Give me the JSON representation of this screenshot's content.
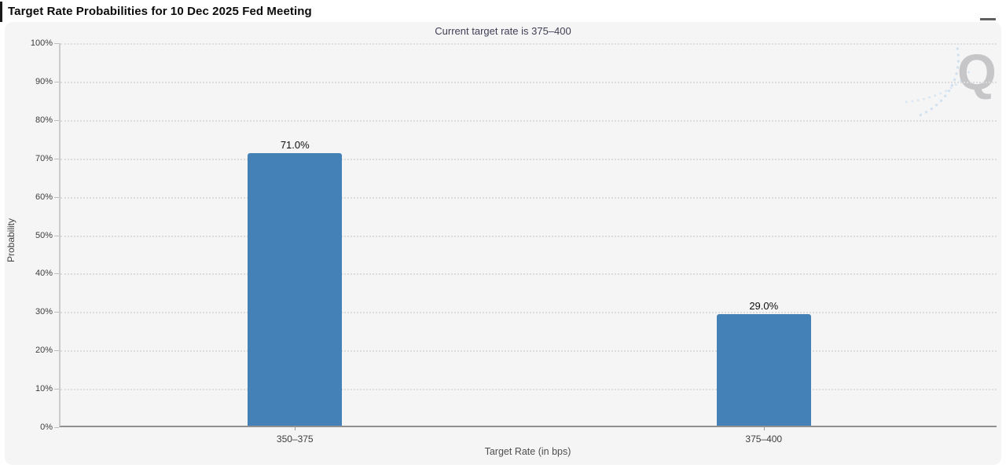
{
  "header": {
    "title": "Target Rate Probabilities for 10 Dec 2025 Fed Meeting",
    "menu_icon": "hamburger-icon"
  },
  "watermark": {
    "letter": "Q"
  },
  "chart_data": {
    "type": "bar",
    "title": "Target Rate Probabilities for 10 Dec 2025 Fed Meeting",
    "subtitle": "Current target rate is 375–400",
    "categories": [
      "350–375",
      "375–400"
    ],
    "values": [
      71.0,
      29.0
    ],
    "value_labels": [
      "71.0%",
      "29.0%"
    ],
    "xlabel": "Target Rate (in bps)",
    "ylabel": "Probability",
    "ylim": [
      0,
      100
    ],
    "ytick_step": 10,
    "yticks": [
      "0%",
      "10%",
      "20%",
      "30%",
      "40%",
      "50%",
      "60%",
      "70%",
      "80%",
      "90%",
      "100%"
    ],
    "legend": "none",
    "grid": "horizontal-dotted",
    "bar_color": "#4381b6"
  }
}
